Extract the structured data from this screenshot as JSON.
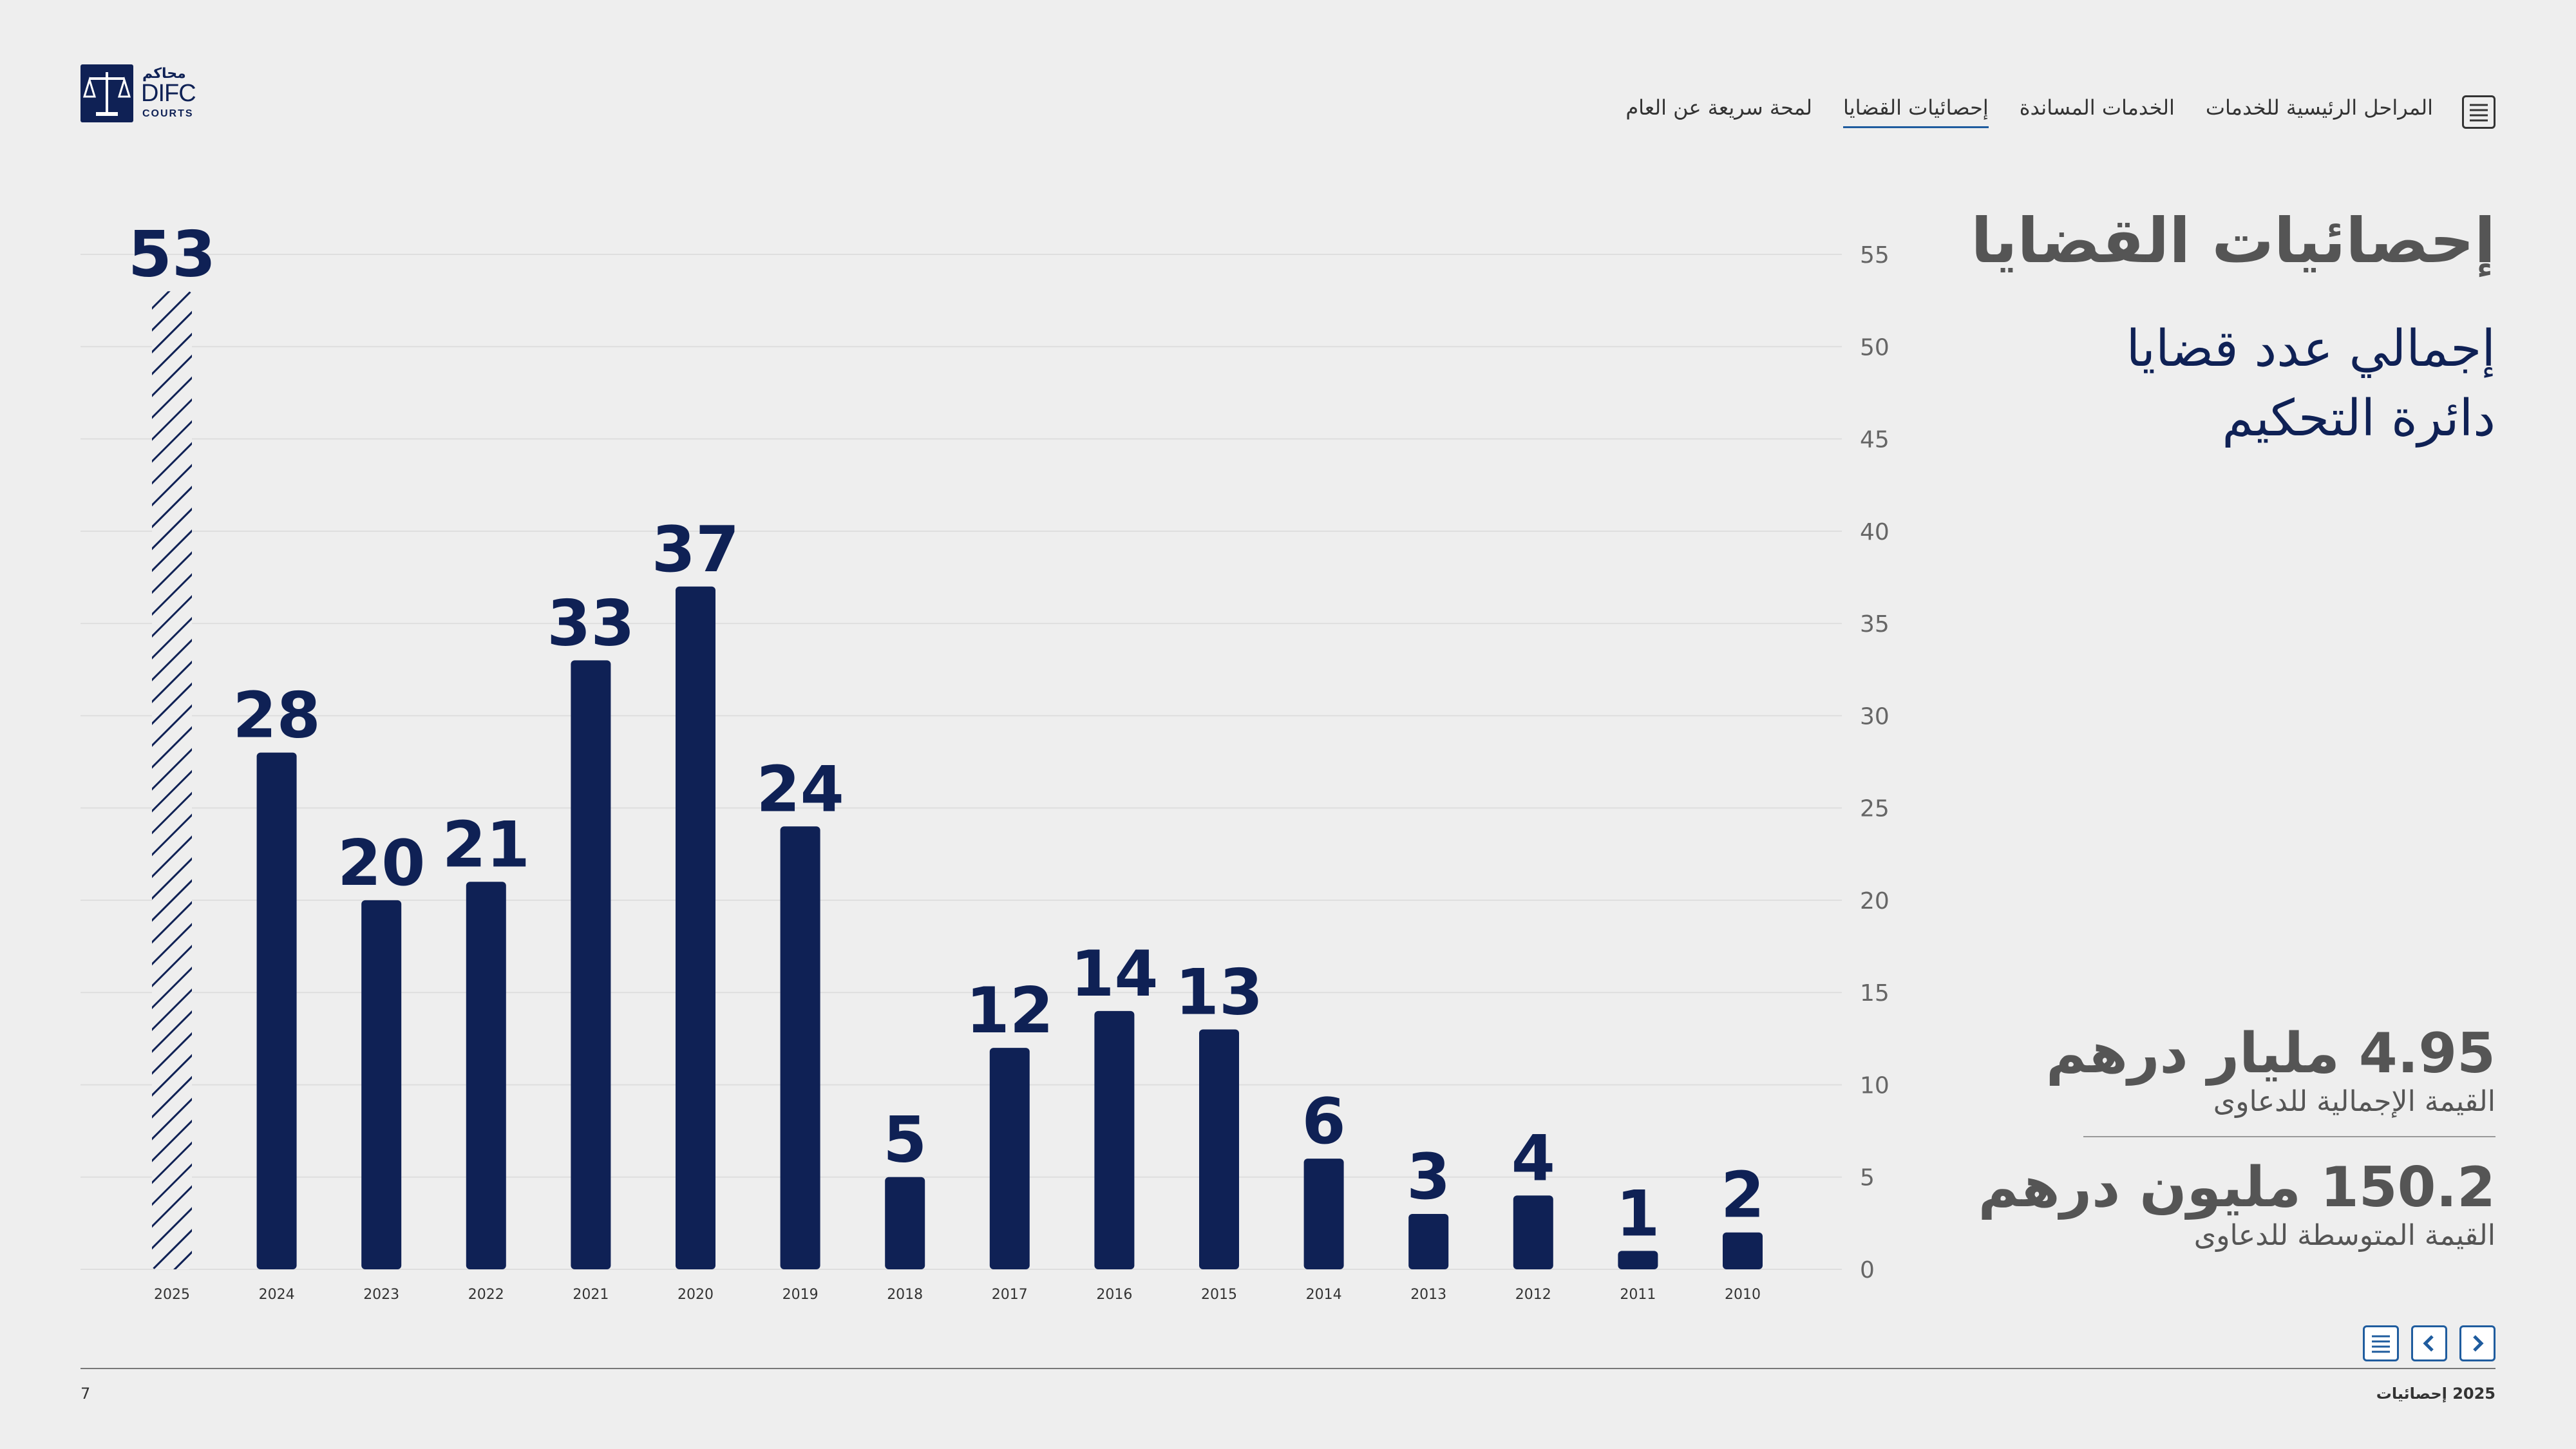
{
  "header": {
    "logo": {
      "arabic": "محاكم",
      "name": "DIFC",
      "sub": "COURTS"
    },
    "nav": [
      {
        "label": "لمحة سريعة عن العام",
        "active": false
      },
      {
        "label": "إحصائيات القضايا",
        "active": true
      },
      {
        "label": "الخدمات المساندة",
        "active": false
      },
      {
        "label": "المراحل الرئيسية للخدمات",
        "active": false
      }
    ],
    "menu_icon": "list-icon"
  },
  "page": {
    "title": "إحصائيات القضايا",
    "subtitle_line1": "إجمالي عدد قضايا",
    "subtitle_line2": "دائرة التحكيم"
  },
  "stats": [
    {
      "value": "4.95 مليار درهم",
      "label": "القيمة الإجمالية للدعاوى"
    },
    {
      "value": "150.2 مليون درهم",
      "label": "القيمة المتوسطة للدعاوى"
    }
  ],
  "controls": {
    "icons": [
      "list-icon",
      "chevron-left-icon",
      "chevron-right-icon"
    ]
  },
  "footer": {
    "page_number": "7",
    "title": "2025 إحصائيات"
  },
  "colors": {
    "navy": "#0f2155",
    "accent": "#1f5c9e",
    "text_gray": "#555555",
    "background": "#eeeeee"
  },
  "chart_data": {
    "type": "bar",
    "categories": [
      "2025",
      "2024",
      "2023",
      "2022",
      "2021",
      "2020",
      "2019",
      "2018",
      "2017",
      "2016",
      "2015",
      "2014",
      "2013",
      "2012",
      "2011",
      "2010"
    ],
    "values": [
      53,
      28,
      20,
      21,
      33,
      37,
      24,
      5,
      12,
      14,
      13,
      6,
      3,
      4,
      1,
      2
    ],
    "highlight": {
      "category": "2025",
      "style": "hatched"
    },
    "y_ticks": [
      0,
      5,
      10,
      15,
      20,
      25,
      30,
      35,
      40,
      45,
      50,
      55
    ],
    "ylim": [
      0,
      55
    ],
    "y_axis_side": "right",
    "grid": true,
    "data_labels": true,
    "title": "",
    "xlabel": "",
    "ylabel": ""
  }
}
